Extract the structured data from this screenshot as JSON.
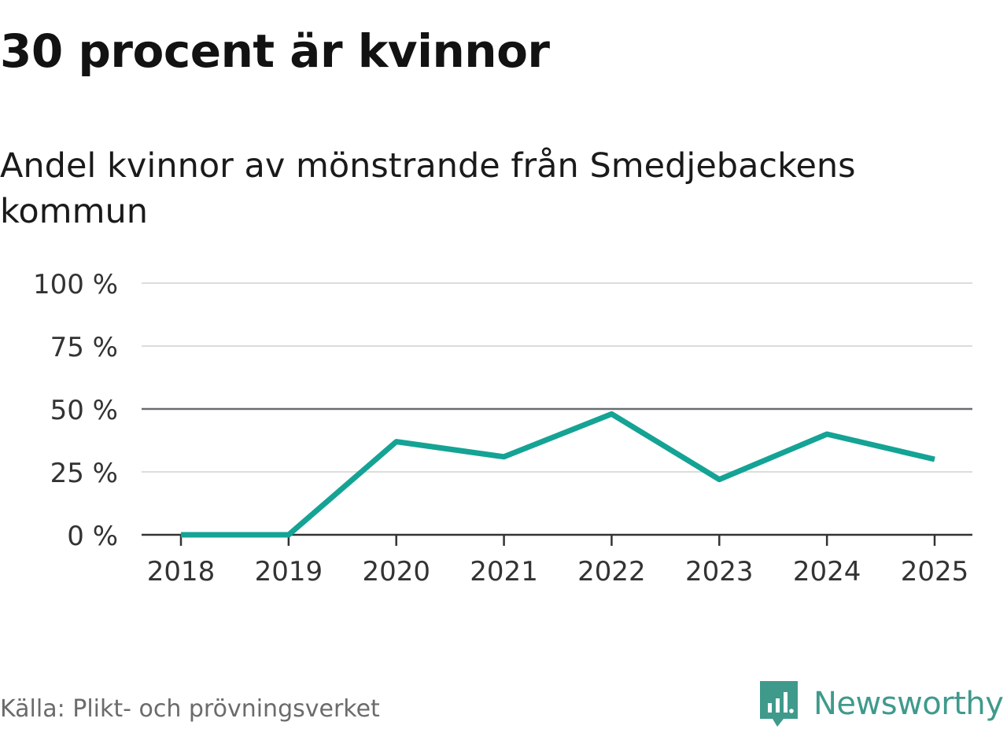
{
  "title": "30 procent är kvinnor",
  "subtitle": "Andel kvinnor av mönstrande från Smedjebackens kommun",
  "source": "Källa: Plikt- och prövningsverket",
  "brand": {
    "name": "Newsworthy",
    "icon": "newsworthy-logo-icon",
    "color": "#3f9a8c"
  },
  "chart_data": {
    "type": "line",
    "x": [
      "2018",
      "2019",
      "2020",
      "2021",
      "2022",
      "2023",
      "2024",
      "2025"
    ],
    "series": [
      {
        "name": "Andel kvinnor",
        "values": [
          0,
          0,
          37,
          31,
          48,
          22,
          40,
          30
        ],
        "color": "#14a394"
      }
    ],
    "yticks": [
      0,
      25,
      50,
      75,
      100
    ],
    "ytick_labels": [
      "0 %",
      "25 %",
      "50 %",
      "75 %",
      "100 %"
    ],
    "ylim": [
      0,
      100
    ],
    "reference_line": 50,
    "grid": true,
    "xlabel": "",
    "ylabel": ""
  }
}
